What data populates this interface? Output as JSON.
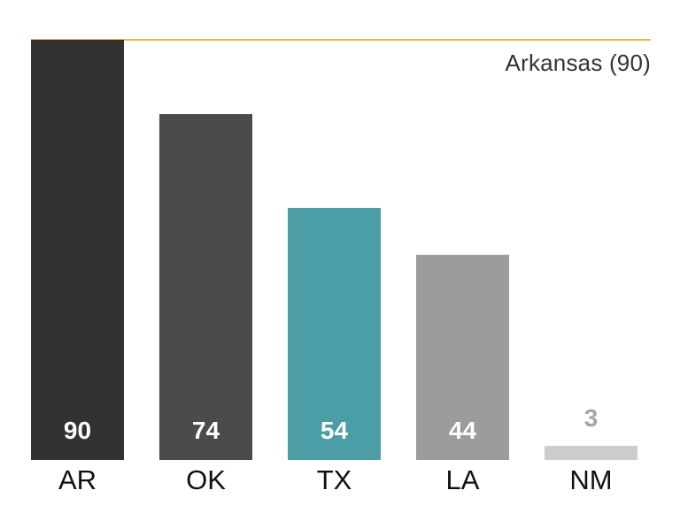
{
  "chart_data": {
    "type": "bar",
    "title": "",
    "xlabel": "",
    "ylabel": "",
    "categories": [
      "AR",
      "OK",
      "TX",
      "LA",
      "NM"
    ],
    "values": [
      90,
      74,
      54,
      44,
      3
    ],
    "value_labels": [
      "90",
      "74",
      "54",
      "44",
      "3"
    ],
    "bar_colors": [
      "#323232",
      "#4b4b4b",
      "#4b9ea5",
      "#9c9c9c",
      "#cccccc"
    ],
    "ylim": [
      0,
      90
    ],
    "grid": false,
    "legend": false,
    "reference_line": {
      "value": 90,
      "label": "Arkansas (90)",
      "color": "#e6b54c"
    },
    "value_label_in_bar_color": "#ffffff",
    "value_label_outside_color": "#a6a6a6"
  }
}
